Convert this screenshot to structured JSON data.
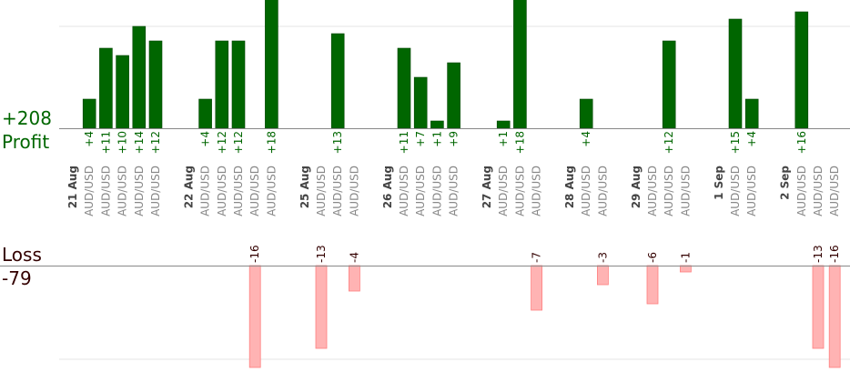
{
  "summary": {
    "profit_total": "+208",
    "profit_label": "Profit",
    "loss_label": "Loss",
    "loss_total": "-79"
  },
  "colors": {
    "profit_bar": "#006600",
    "profit_text": "#006600",
    "loss_bar": "#ffb3b3",
    "loss_bar_edge": "#ff8080",
    "loss_text": "#330000",
    "date_text": "#444444",
    "pair_text": "#888888",
    "axis": "#888888",
    "grid": "#e6e6e6"
  },
  "chart_data": {
    "type": "bar",
    "profit_label_format": "+N",
    "slots": [
      {
        "kind": "date",
        "label": "21 Aug"
      },
      {
        "kind": "trade",
        "pair": "AUD/USD",
        "value": 4
      },
      {
        "kind": "trade",
        "pair": "AUD/USD",
        "value": 11
      },
      {
        "kind": "trade",
        "pair": "AUD/USD",
        "value": 10
      },
      {
        "kind": "trade",
        "pair": "AUD/USD",
        "value": 14
      },
      {
        "kind": "trade",
        "pair": "AUD/USD",
        "value": 12
      },
      {
        "kind": "gap"
      },
      {
        "kind": "date",
        "label": "22 Aug"
      },
      {
        "kind": "trade",
        "pair": "AUD/USD",
        "value": 4
      },
      {
        "kind": "trade",
        "pair": "AUD/USD",
        "value": 12
      },
      {
        "kind": "trade",
        "pair": "AUD/USD",
        "value": 12
      },
      {
        "kind": "trade",
        "pair": "AUD/USD",
        "value": -16
      },
      {
        "kind": "trade",
        "pair": "AUD/USD",
        "value": 18
      },
      {
        "kind": "gap"
      },
      {
        "kind": "date",
        "label": "25 Aug"
      },
      {
        "kind": "trade",
        "pair": "AUD/USD",
        "value": -13
      },
      {
        "kind": "trade",
        "pair": "AUD/USD",
        "value": 13
      },
      {
        "kind": "trade",
        "pair": "AUD/USD",
        "value": -4
      },
      {
        "kind": "gap"
      },
      {
        "kind": "date",
        "label": "26 Aug"
      },
      {
        "kind": "trade",
        "pair": "AUD/USD",
        "value": 11
      },
      {
        "kind": "trade",
        "pair": "AUD/USD",
        "value": 7
      },
      {
        "kind": "trade",
        "pair": "AUD/USD",
        "value": 1
      },
      {
        "kind": "trade",
        "pair": "AUD/USD",
        "value": 9
      },
      {
        "kind": "gap"
      },
      {
        "kind": "date",
        "label": "27 Aug"
      },
      {
        "kind": "trade",
        "pair": "AUD/USD",
        "value": 1
      },
      {
        "kind": "trade",
        "pair": "AUD/USD",
        "value": 18
      },
      {
        "kind": "trade",
        "pair": "AUD/USD",
        "value": -7
      },
      {
        "kind": "gap"
      },
      {
        "kind": "date",
        "label": "28 Aug"
      },
      {
        "kind": "trade",
        "pair": "AUD/USD",
        "value": 4
      },
      {
        "kind": "trade",
        "pair": "AUD/USD",
        "value": -3
      },
      {
        "kind": "gap"
      },
      {
        "kind": "date",
        "label": "29 Aug"
      },
      {
        "kind": "trade",
        "pair": "AUD/USD",
        "value": -6
      },
      {
        "kind": "trade",
        "pair": "AUD/USD",
        "value": 12
      },
      {
        "kind": "trade",
        "pair": "AUD/USD",
        "value": -1
      },
      {
        "kind": "gap"
      },
      {
        "kind": "date",
        "label": "1 Sep"
      },
      {
        "kind": "trade",
        "pair": "AUD/USD",
        "value": 15
      },
      {
        "kind": "trade",
        "pair": "AUD/USD",
        "value": 4
      },
      {
        "kind": "gap"
      },
      {
        "kind": "date",
        "label": "2 Sep"
      },
      {
        "kind": "trade",
        "pair": "AUD/USD",
        "value": 16
      },
      {
        "kind": "trade",
        "pair": "AUD/USD",
        "value": -13
      },
      {
        "kind": "trade",
        "pair": "AUD/USD",
        "value": -16
      }
    ],
    "ylim_profit": [
      0,
      16
    ],
    "ylim_loss": [
      -16,
      0
    ],
    "grid": true
  }
}
